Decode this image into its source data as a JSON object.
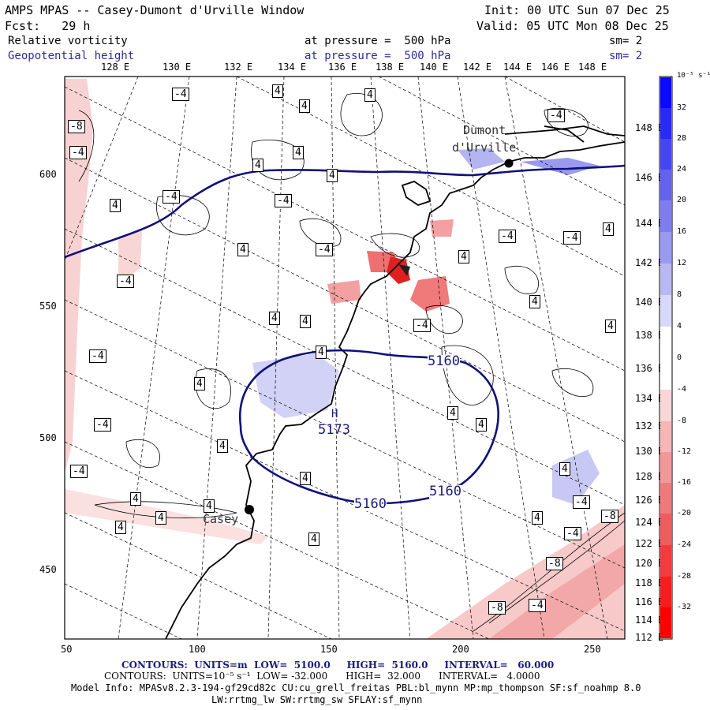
{
  "header": {
    "title": "AMPS MPAS -- Casey-Dumont d'Urville Window",
    "init": "Init: 00 UTC Sun 07 Dec 25",
    "forecast": "Fcst:   29 h",
    "valid": "Valid: 05 UTC Mon 08 Dec 25",
    "field1": {
      "name": "Relative vorticity",
      "level": "at pressure =  500 hPa",
      "smoothing": "sm= 2"
    },
    "field2": {
      "name": "Geopotential height",
      "level": "at pressure =  500 hPa",
      "smoothing": "sm= 2"
    }
  },
  "axes": {
    "top_lon_labels": [
      "128 E",
      "130 E",
      "132 E",
      "134 E",
      "136 E",
      "138 E",
      "140 E",
      "142 E",
      "144 E",
      "146 E",
      "148 E"
    ],
    "right_lon_labels": [
      "148 E",
      "146 E",
      "144 E",
      "142 E",
      "140 E",
      "138 E",
      "136 E",
      "134 E",
      "132 E",
      "130 E",
      "128 E",
      "126 E",
      "124 E",
      "122 E",
      "120 E",
      "118 E",
      "116 E",
      "114 E",
      "112 E"
    ],
    "left_y_labels": [
      "600",
      "550",
      "500",
      "450"
    ],
    "bottom_x_labels": [
      "50",
      "100",
      "150",
      "200",
      "250"
    ]
  },
  "places": {
    "dumont_line1": "Dumont",
    "dumont_line2": "d'Urville",
    "casey": "Casey"
  },
  "height_field": {
    "low_label": "H",
    "low_value": "5173",
    "contour_labels": [
      "5160",
      "5160",
      "5160"
    ]
  },
  "vorticity_labels": [
    "-4",
    "-4",
    "-8",
    "-4",
    "4",
    "4",
    "4",
    "-4",
    "4",
    "4",
    "-4",
    "4",
    "4",
    "-4",
    "4",
    "-4",
    "4",
    "4",
    "4",
    "-4",
    "-4",
    "4",
    "-4",
    "4",
    "4",
    "4",
    "-4",
    "4",
    "4",
    "4",
    "4",
    "-4",
    "4",
    "4",
    "4",
    "4",
    "4",
    "-4",
    "-8",
    "-4",
    "4",
    "-8",
    "-4",
    "-8",
    "-4",
    "4",
    "4",
    "4",
    "4"
  ],
  "colorbar": {
    "title": "10⁻⁵ s⁻¹",
    "tick_labels": [
      "32",
      "28",
      "24",
      "20",
      "16",
      "12",
      "8",
      "4",
      "0",
      "-4",
      "-8",
      "-12",
      "-16",
      "-20",
      "-24",
      "-28",
      "-32"
    ],
    "colors": [
      "#0a0aff",
      "#2a2af5",
      "#4646f0",
      "#6262ee",
      "#7e7ef0",
      "#9a9af3",
      "#b8b8f6",
      "#d8d8fa",
      "#ffffff",
      "#ffffff",
      "#fad6d6",
      "#f6b6b6",
      "#f39898",
      "#f07a7a",
      "#ee5c5c",
      "#f03c3c",
      "#f51e1e",
      "#ff0000"
    ]
  },
  "footer": {
    "line1": "CONTOURS:  UNITS=m  LOW=  5100.0     HIGH=  5160.0     INTERVAL=   60.000",
    "line2": "CONTOURS:  UNITS=10⁻⁵ s⁻¹  LOW= -32.000      HIGH=  32.000      INTERVAL=   4.0000",
    "line3": "Model Info: MPASv8.2.3-194-gf29cd82c CU:cu_grell_freitas PBL:bl_mynn MP:mp_thompson SF:sf_noahmp 8.0",
    "line4": "LW:rrtmg_lw SW:rrtmg_sw SFLAY:sf_mynn"
  },
  "colors": {
    "height_contour": "#10107a",
    "coast": "#000000",
    "neg_fill": "#f6c4c4",
    "pos_fill": "#c8c8f4"
  }
}
